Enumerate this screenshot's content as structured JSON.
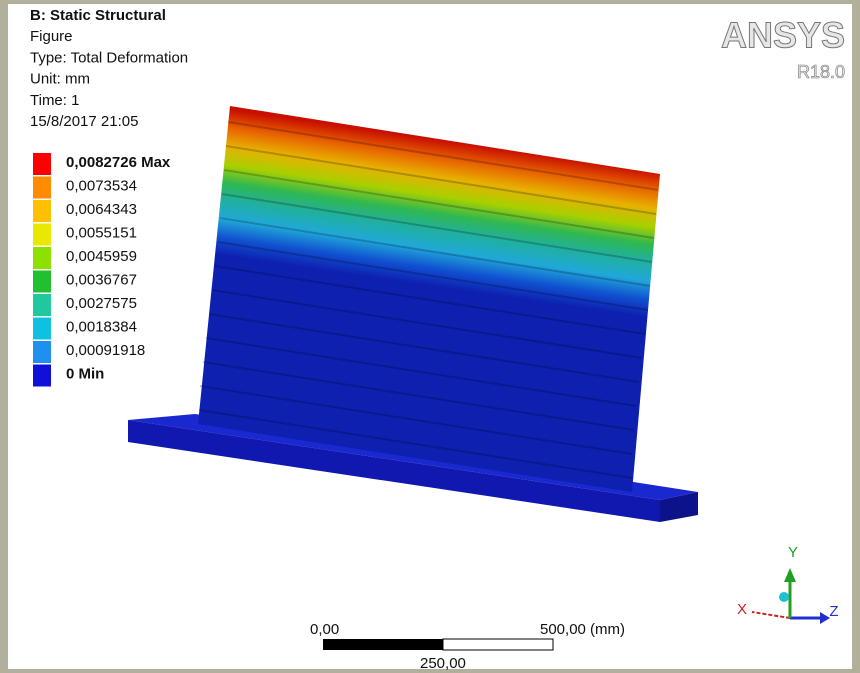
{
  "header": {
    "title": "B: Static Structural",
    "lines": [
      "Figure",
      "Type: Total Deformation",
      "Unit: mm",
      "Time: 1",
      "15/8/2017 21:05"
    ]
  },
  "legend": {
    "entries": [
      {
        "label": "0,0082726 Max",
        "color": "#ff0000"
      },
      {
        "label": "0,0073534",
        "color": "#ff8c00"
      },
      {
        "label": "0,0064343",
        "color": "#ffc000"
      },
      {
        "label": "0,0055151",
        "color": "#e8e800"
      },
      {
        "label": "0,0045959",
        "color": "#8ee000"
      },
      {
        "label": "0,0036767",
        "color": "#20c030"
      },
      {
        "label": "0,0027575",
        "color": "#20c8a0"
      },
      {
        "label": "0,0018384",
        "color": "#10c0e0"
      },
      {
        "label": "0,00091918",
        "color": "#2090f0"
      },
      {
        "label": "0 Min",
        "color": "#1010d8"
      }
    ]
  },
  "logo": {
    "name": "ANSYS",
    "version": "R18.0"
  },
  "scale_bar": {
    "start": "0,00",
    "end": "500,00 (mm)",
    "mid": "250,00"
  },
  "triad": {
    "x": "X",
    "y": "Y",
    "z": "Z"
  }
}
